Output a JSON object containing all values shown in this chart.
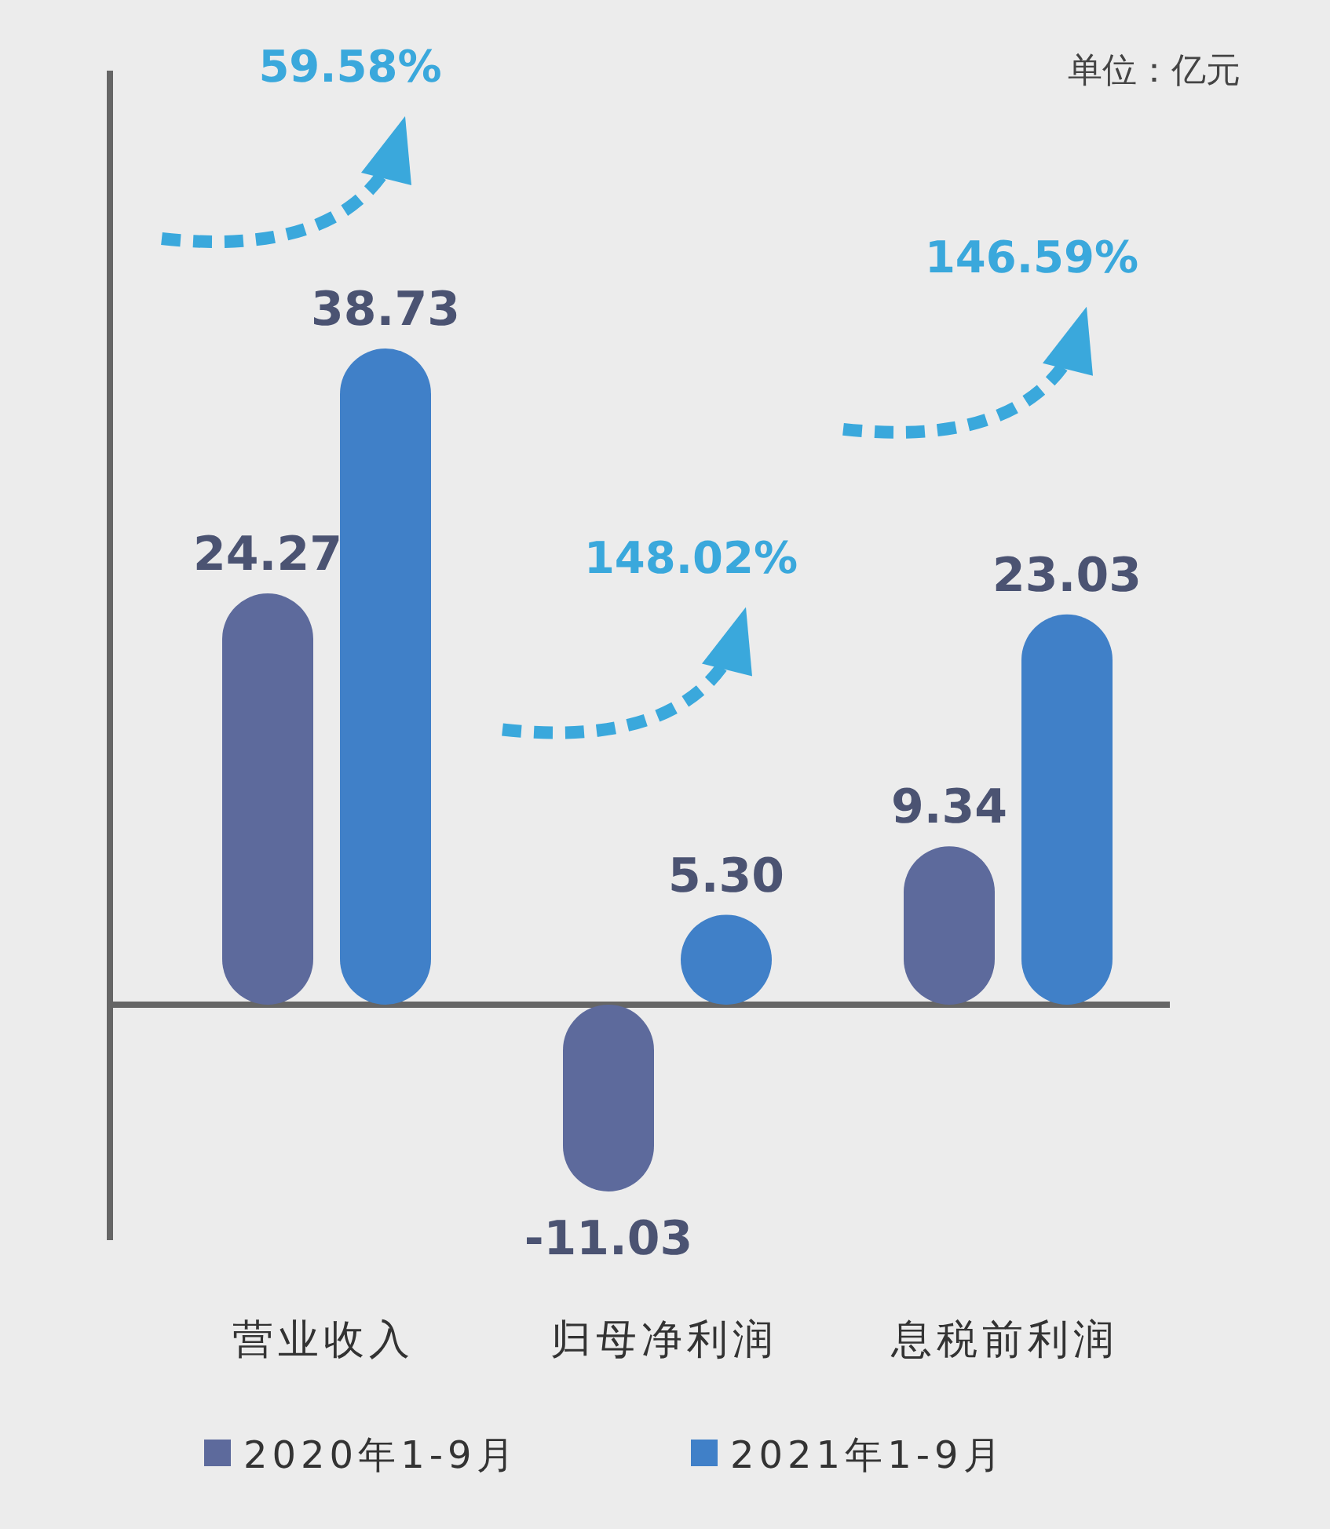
{
  "chart_data": {
    "type": "bar",
    "categories": [
      "营业收入",
      "归母净利润",
      "息税前利润"
    ],
    "series": [
      {
        "name": "2020年1-9月",
        "color": "#5d6a9c",
        "values": [
          24.27,
          -11.03,
          9.34
        ],
        "value_labels": [
          "24.27",
          "-11.03",
          "9.34"
        ]
      },
      {
        "name": "2021年1-9月",
        "color": "#4080c8",
        "values": [
          38.73,
          5.3,
          23.03
        ],
        "value_labels": [
          "38.73",
          "5.30",
          "23.03"
        ]
      }
    ],
    "legend": "bottom",
    "annotations": [
      "59.58%",
      "148.02%",
      "146.59%",
      "单位：亿元"
    ]
  }
}
